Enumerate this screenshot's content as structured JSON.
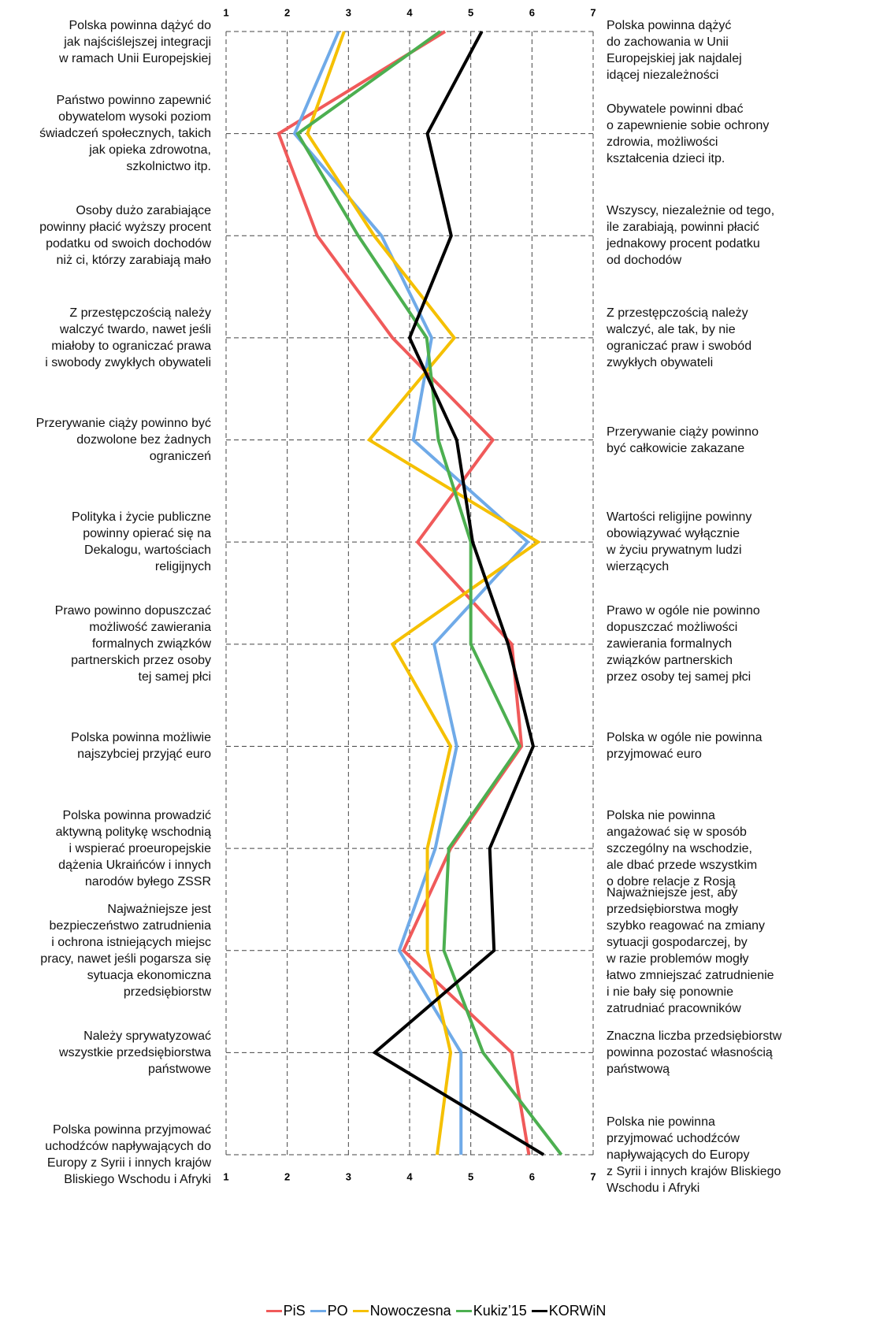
{
  "chart_data": {
    "type": "line",
    "categories": [
      "Polska powinna dążyć do\njak najściślejszej integracji\nw ramach Unii Europejskiej",
      "Państwo powinno zapewnić\nobywatelom wysoki poziom\nświadczeń społecznych, takich\njak opieka zdrowotna,\nszkolnictwo itp.",
      "Osoby dużo zarabiające\npowinny płacić wyższy procent\npodatku od swoich dochodów\nniż ci, którzy zarabiają mało",
      "Z przestępczością należy\nwalczyć twardo, nawet jeśli\nmiałoby to ograniczać prawa\ni swobody zwykłych obywateli",
      "Przerywanie ciąży powinno być\ndozwolone bez żadnych\nograniczeń",
      "Polityka i życie publiczne\npowinny opierać się na\nDekalogu, wartościach\nreligijnych",
      "Prawo powinno dopuszczać\nmożliwość zawierania\nformalnych związków\npartnerskich przez osoby\ntej samej płci",
      "Polska powinna możliwie\nnajszybciej przyjąć euro",
      "Polska powinna prowadzić\naktywną politykę wschodnią\ni wspierać proeuropejskie\ndążenia Ukraińców i innych\nnarodów byłego ZSSR",
      "Najważniejsze jest\nbezpieczeństwo zatrudnienia\ni ochrona istniejących miejsc\npracy, nawet jeśli pogarsza się\nsytuacja ekonomiczna\nprzedsiębiorstw",
      "Należy sprywatyzować\nwszystkie przedsiębiorstwa\npaństwowe",
      "Polska powinna przyjmować\nuchodźców napływających do\nEuropy z Syrii i innych krajów\nBliskiego Wschodu i Afryki"
    ],
    "right_categories": [
      "Polska powinna dążyć\ndo zachowania w Unii\nEuropejskiej jak najdalej\nidącej niezależności",
      "Obywatele powinni dbać\no zapewnienie sobie ochrony\nzdrowia, możliwości\nkształcenia dzieci itp.",
      "Wszyscy, niezależnie od tego,\nile zarabiają, powinni płacić\njednakowy procent podatku\nod dochodów",
      "Z przestępczością należy\nwalczyć, ale tak, by nie\nograniczać praw i swobód\nzwykłych obywateli",
      "Przerywanie ciąży powinno\nbyć całkowicie zakazane",
      "Wartości religijne powinny\nobowiązywać wyłącznie\nw życiu prywatnym ludzi\nwierzących",
      "Prawo w ogóle nie powinno\ndopuszczać możliwości\nzawierania formalnych\nzwiązków partnerskich\nprzez osoby tej samej płci",
      "Polska w ogóle nie powinna\nprzyjmować euro",
      "Polska nie powinna\nangażować się w sposób\nszczególny na wschodzie,\nale dbać przede wszystkim\no dobre relacje z Rosją",
      "Najważniejsze jest, aby\nprzedsiębiorstwa mogły\nszybko reagować na zmiany\nsytuacji gospodarczej, by\nw razie problemów mogły\nłatwo zmniejszać zatrudnienie\ni nie bały się ponownie\nzatrudniać pracowników",
      "Znaczna liczba przedsiębiorstw\npowinna pozostać własnością\npaństwową",
      "Polska nie powinna\nprzyjmować uchodźców\nnapływających do Europy\nz Syrii i innych krajów Bliskiego\nWschodu i Afryki"
    ],
    "series": [
      {
        "name": "PiS",
        "color": "#f05a5a",
        "values": [
          4.58,
          1.86,
          2.49,
          3.72,
          5.36,
          4.13,
          5.67,
          5.83,
          4.67,
          3.9,
          5.67,
          5.95
        ]
      },
      {
        "name": "PO",
        "color": "#6faae8",
        "values": [
          2.84,
          2.12,
          3.54,
          4.36,
          4.06,
          5.93,
          4.4,
          4.77,
          4.42,
          3.83,
          4.84,
          4.84
        ]
      },
      {
        "name": "Nowoczesna",
        "color": "#f5c000",
        "values": [
          2.93,
          2.33,
          3.42,
          4.73,
          3.34,
          6.1,
          3.72,
          4.67,
          4.29,
          4.29,
          4.67,
          4.45
        ]
      },
      {
        "name": "Kukiz’15",
        "color": "#4caf50",
        "values": [
          4.5,
          2.17,
          3.16,
          4.28,
          4.47,
          5.0,
          5.0,
          5.8,
          4.64,
          4.56,
          5.2,
          6.48
        ]
      },
      {
        "name": "KORWiN",
        "color": "#000000",
        "values": [
          5.18,
          4.29,
          4.68,
          4.0,
          4.77,
          5.03,
          5.61,
          6.02,
          5.31,
          5.38,
          3.43,
          6.19
        ]
      }
    ],
    "xlim": [
      1,
      7
    ],
    "xticks": [
      1,
      2,
      3,
      4,
      5,
      6,
      7
    ],
    "grid": true,
    "legend": "bottom"
  }
}
